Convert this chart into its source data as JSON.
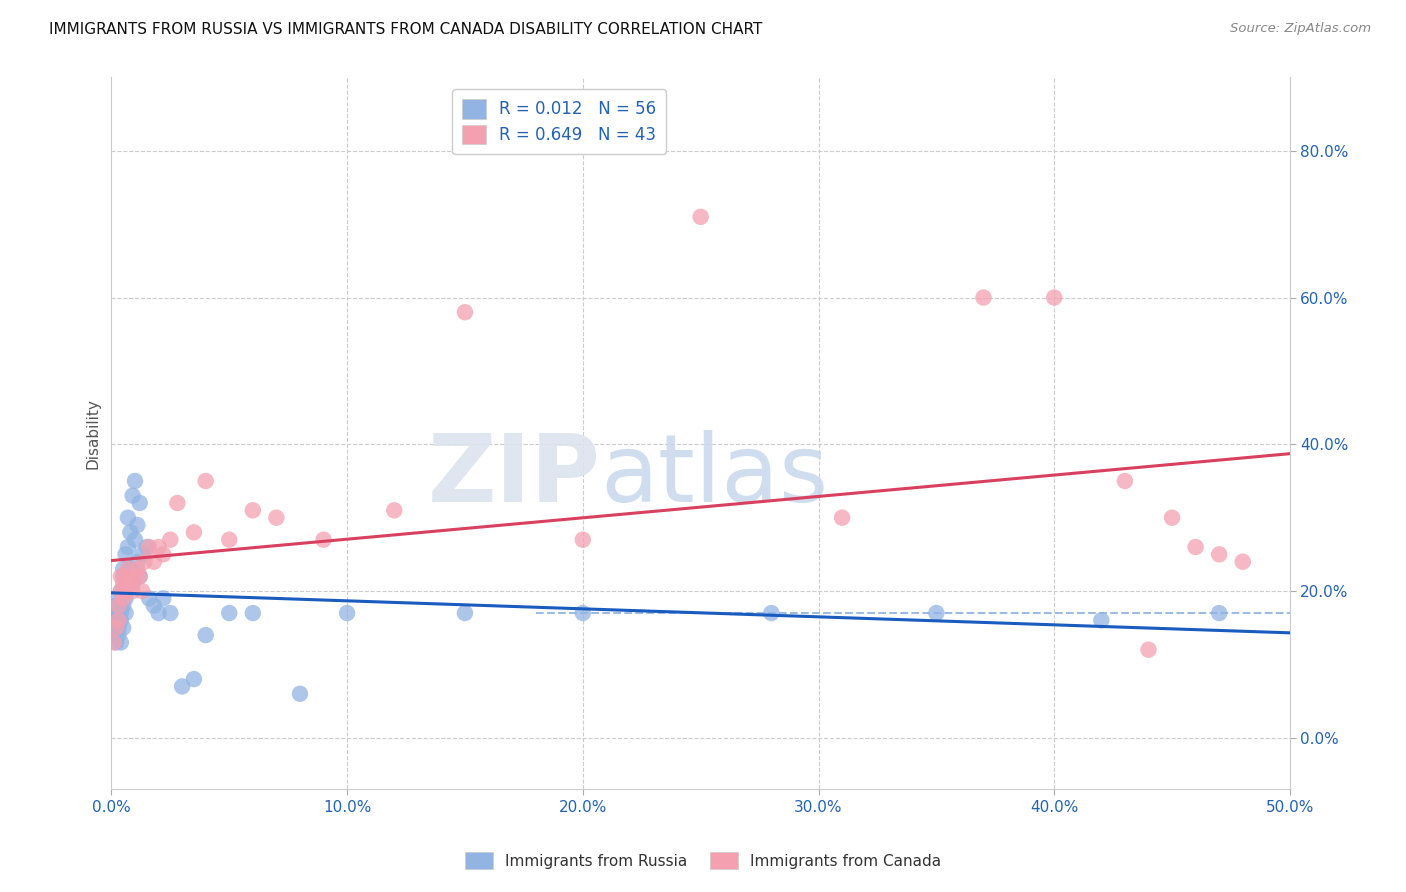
{
  "title": "IMMIGRANTS FROM RUSSIA VS IMMIGRANTS FROM CANADA DISABILITY CORRELATION CHART",
  "source": "Source: ZipAtlas.com",
  "ylabel": "Disability",
  "xlim": [
    0.0,
    0.5
  ],
  "ylim": [
    -0.07,
    0.9
  ],
  "xticks": [
    0.0,
    0.1,
    0.2,
    0.3,
    0.4,
    0.5
  ],
  "xtick_labels": [
    "0.0%",
    "10.0%",
    "20.0%",
    "30.0%",
    "40.0%",
    "50.0%"
  ],
  "yticks": [
    0.0,
    0.2,
    0.4,
    0.6,
    0.8
  ],
  "ytick_labels": [
    "0.0%",
    "20.0%",
    "40.0%",
    "60.0%",
    "80.0%"
  ],
  "blue_color": "#92b4e3",
  "pink_color": "#f4a0b0",
  "blue_line_color": "#1a5bbf",
  "pink_line_color": "#d94060",
  "dashed_line_color": "#92b4e3",
  "russia_R": 0.012,
  "russia_N": 56,
  "canada_R": 0.649,
  "canada_N": 43,
  "russia_x": [
    0.001,
    0.001,
    0.001,
    0.002,
    0.002,
    0.002,
    0.002,
    0.003,
    0.003,
    0.003,
    0.003,
    0.004,
    0.004,
    0.004,
    0.004,
    0.005,
    0.005,
    0.005,
    0.005,
    0.006,
    0.006,
    0.006,
    0.006,
    0.007,
    0.007,
    0.007,
    0.008,
    0.008,
    0.009,
    0.009,
    0.01,
    0.01,
    0.011,
    0.011,
    0.012,
    0.012,
    0.013,
    0.015,
    0.016,
    0.018,
    0.02,
    0.022,
    0.025,
    0.03,
    0.035,
    0.04,
    0.05,
    0.06,
    0.08,
    0.1,
    0.15,
    0.2,
    0.28,
    0.35,
    0.42,
    0.47
  ],
  "russia_y": [
    0.16,
    0.14,
    0.17,
    0.15,
    0.16,
    0.13,
    0.18,
    0.16,
    0.14,
    0.19,
    0.15,
    0.17,
    0.13,
    0.2,
    0.16,
    0.22,
    0.18,
    0.15,
    0.23,
    0.2,
    0.17,
    0.25,
    0.19,
    0.22,
    0.3,
    0.26,
    0.23,
    0.28,
    0.33,
    0.21,
    0.35,
    0.27,
    0.29,
    0.24,
    0.32,
    0.22,
    0.25,
    0.26,
    0.19,
    0.18,
    0.17,
    0.19,
    0.17,
    0.07,
    0.08,
    0.14,
    0.17,
    0.17,
    0.06,
    0.17,
    0.17,
    0.17,
    0.17,
    0.17,
    0.16,
    0.17
  ],
  "canada_x": [
    0.001,
    0.002,
    0.003,
    0.003,
    0.004,
    0.004,
    0.005,
    0.005,
    0.006,
    0.006,
    0.007,
    0.008,
    0.009,
    0.01,
    0.011,
    0.012,
    0.013,
    0.014,
    0.016,
    0.018,
    0.02,
    0.022,
    0.025,
    0.028,
    0.035,
    0.04,
    0.05,
    0.06,
    0.07,
    0.09,
    0.12,
    0.15,
    0.2,
    0.25,
    0.31,
    0.37,
    0.4,
    0.43,
    0.44,
    0.45,
    0.46,
    0.47,
    0.48
  ],
  "canada_y": [
    0.13,
    0.15,
    0.16,
    0.18,
    0.2,
    0.22,
    0.19,
    0.21,
    0.2,
    0.22,
    0.23,
    0.21,
    0.2,
    0.22,
    0.23,
    0.22,
    0.2,
    0.24,
    0.26,
    0.24,
    0.26,
    0.25,
    0.27,
    0.32,
    0.28,
    0.35,
    0.27,
    0.31,
    0.3,
    0.27,
    0.31,
    0.58,
    0.27,
    0.71,
    0.3,
    0.6,
    0.6,
    0.35,
    0.12,
    0.3,
    0.26,
    0.25,
    0.24
  ],
  "watermark_zip": "ZIP",
  "watermark_atlas": "atlas",
  "background_color": "#ffffff",
  "grid_color": "#cccccc",
  "tick_color": "#2563b0",
  "spine_color": "#cccccc"
}
